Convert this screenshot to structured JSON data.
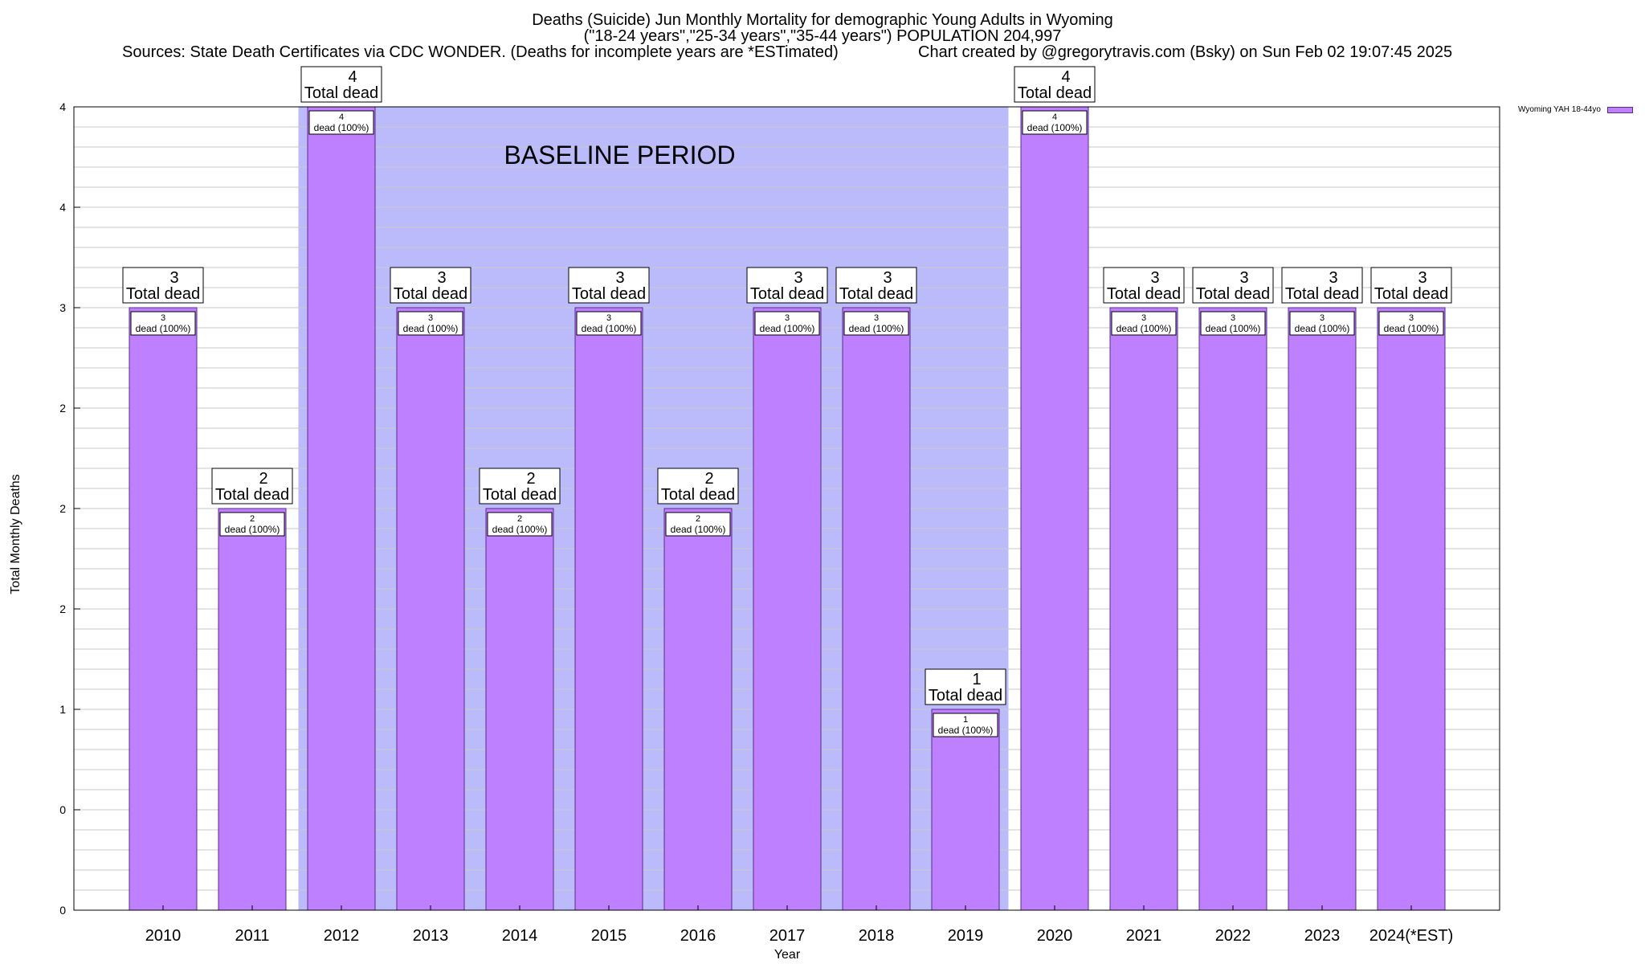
{
  "title": {
    "line1": "Deaths (Suicide) Jun Monthly Mortality for demographic Young Adults in Wyoming",
    "line2": "(\"18-24 years\",\"25-34 years\",\"35-44 years\") POPULATION 204,997",
    "source": "Sources: State Death Certificates via CDC WONDER. (Deaths for incomplete years are *ESTimated)",
    "credit": "Chart created by @gregorytravis.com (Bsky) on Sun Feb 02 19:07:45 2025"
  },
  "legend": {
    "label": "Wyoming YAH 18-44yo"
  },
  "chart_data": {
    "type": "bar",
    "xlabel": "Year",
    "ylabel": "Total Monthly Deaths",
    "categories": [
      "2010",
      "2011",
      "2012",
      "2013",
      "2014",
      "2015",
      "2016",
      "2017",
      "2018",
      "2019",
      "2020",
      "2021",
      "2022",
      "2023",
      "2024(*EST)"
    ],
    "values": [
      3,
      2,
      4,
      3,
      2,
      3,
      2,
      3,
      3,
      1,
      4,
      3,
      3,
      3,
      3
    ],
    "ylim": [
      0,
      4
    ],
    "ytick_labels": [
      "0",
      "0",
      "1",
      "2",
      "2",
      "2",
      "3",
      "4",
      "4"
    ],
    "baseline_period": {
      "label": "BASELINE PERIOD",
      "from": "2012",
      "to": "2019"
    },
    "bar_label_suffix": "Total dead",
    "inner_label_suffix": "dead (100%)",
    "colors": {
      "bar": "#bf80ff",
      "bar_edge": "#5a2d8a",
      "baseline_fill": "#bbbbfb",
      "grid": "#c8c8c8"
    }
  }
}
